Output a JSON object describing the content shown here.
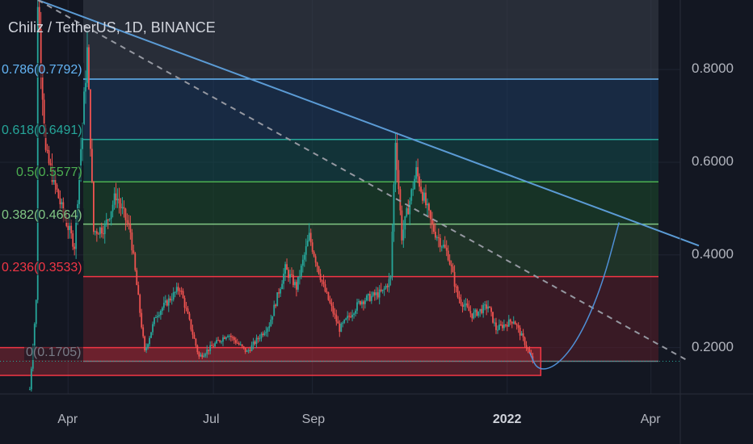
{
  "title": "Chiliz / TetherUS, 1D, BINANCE",
  "chart_data": {
    "type": "candlestick",
    "symbol": "Chiliz / TetherUS",
    "interval": "1D",
    "exchange": "BINANCE",
    "ylim": [
      0.1,
      0.95
    ],
    "yticks": [
      "0.8000",
      "0.6000",
      "0.4000",
      "0.2000"
    ],
    "ytick_values": [
      0.8,
      0.6,
      0.4,
      0.2
    ],
    "xticks": [
      "Apr",
      "Jul",
      "Sep",
      "2022",
      "Apr"
    ],
    "xtick_dates": [
      "2021-04-01",
      "2021-07-01",
      "2021-09-01",
      "2022-01-01",
      "2022-04-01"
    ],
    "x_range": [
      "2021-03-01",
      "2022-05-01"
    ],
    "current_price": 0.1705,
    "fibonacci": [
      {
        "level": "0.786",
        "price": 0.7792,
        "label": "0.786(0.7792)",
        "color": "#64b5f6"
      },
      {
        "level": "0.618",
        "price": 0.6491,
        "label": "0.618(0.6491)",
        "color": "#26a69a"
      },
      {
        "level": "0.5",
        "price": 0.5577,
        "label": "0.5(0.5577)",
        "color": "#4caf50"
      },
      {
        "level": "0.382",
        "price": 0.4664,
        "label": "0.382(0.4664)",
        "color": "#81c784"
      },
      {
        "level": "0.236",
        "price": 0.3533,
        "label": "0.236(0.3533)",
        "color": "#f23645"
      },
      {
        "level": "0",
        "price": 0.1705,
        "label": "0(0.1705)",
        "color": "#787b86"
      }
    ],
    "anchors": [
      {
        "date": "2021-03-08",
        "price": 0.11
      },
      {
        "date": "2021-03-12",
        "price": 0.3
      },
      {
        "date": "2021-03-13",
        "price": 0.95
      },
      {
        "date": "2021-03-18",
        "price": 0.62
      },
      {
        "date": "2021-03-28",
        "price": 0.5
      },
      {
        "date": "2021-04-05",
        "price": 0.42
      },
      {
        "date": "2021-04-13",
        "price": 0.84
      },
      {
        "date": "2021-04-17",
        "price": 0.45
      },
      {
        "date": "2021-04-24",
        "price": 0.46
      },
      {
        "date": "2021-05-01",
        "price": 0.53
      },
      {
        "date": "2021-05-10",
        "price": 0.45
      },
      {
        "date": "2021-05-19",
        "price": 0.19
      },
      {
        "date": "2021-05-26",
        "price": 0.27
      },
      {
        "date": "2021-06-10",
        "price": 0.33
      },
      {
        "date": "2021-06-22",
        "price": 0.18
      },
      {
        "date": "2021-07-10",
        "price": 0.23
      },
      {
        "date": "2021-07-22",
        "price": 0.19
      },
      {
        "date": "2021-08-05",
        "price": 0.25
      },
      {
        "date": "2021-08-15",
        "price": 0.37
      },
      {
        "date": "2021-08-22",
        "price": 0.33
      },
      {
        "date": "2021-08-30",
        "price": 0.44
      },
      {
        "date": "2021-09-08",
        "price": 0.33
      },
      {
        "date": "2021-09-18",
        "price": 0.24
      },
      {
        "date": "2021-10-01",
        "price": 0.3
      },
      {
        "date": "2021-10-15",
        "price": 0.32
      },
      {
        "date": "2021-10-20",
        "price": 0.35
      },
      {
        "date": "2021-10-23",
        "price": 0.65
      },
      {
        "date": "2021-10-27",
        "price": 0.44
      },
      {
        "date": "2021-11-05",
        "price": 0.58
      },
      {
        "date": "2021-11-15",
        "price": 0.46
      },
      {
        "date": "2021-11-25",
        "price": 0.4
      },
      {
        "date": "2021-12-01",
        "price": 0.31
      },
      {
        "date": "2021-12-10",
        "price": 0.27
      },
      {
        "date": "2021-12-20",
        "price": 0.29
      },
      {
        "date": "2021-12-25",
        "price": 0.24
      },
      {
        "date": "2022-01-05",
        "price": 0.26
      },
      {
        "date": "2022-01-12",
        "price": 0.21
      },
      {
        "date": "2022-01-17",
        "price": 0.17
      }
    ],
    "trendline": {
      "from": {
        "date": "2021-03-13",
        "price": 0.95
      },
      "to": {
        "date": "2022-05-01",
        "price": 0.42
      },
      "color": "#5b9bd5"
    },
    "dashed_trendline": {
      "from": {
        "date": "2021-03-13",
        "price": 0.95
      },
      "to": {
        "date": "2022-04-25",
        "price": 0.17
      },
      "color": "#9598a1"
    },
    "support_zone": {
      "from": "2021-03-01",
      "to": "2022-01-22",
      "low": 0.14,
      "high": 0.2,
      "color": "#f23645"
    },
    "projection": [
      {
        "date": "2022-01-15",
        "price": 0.19
      },
      {
        "date": "2022-01-20",
        "price": 0.15
      },
      {
        "date": "2022-02-01",
        "price": 0.16
      },
      {
        "date": "2022-02-15",
        "price": 0.22
      },
      {
        "date": "2022-03-01",
        "price": 0.33
      },
      {
        "date": "2022-03-12",
        "price": 0.47
      }
    ]
  }
}
